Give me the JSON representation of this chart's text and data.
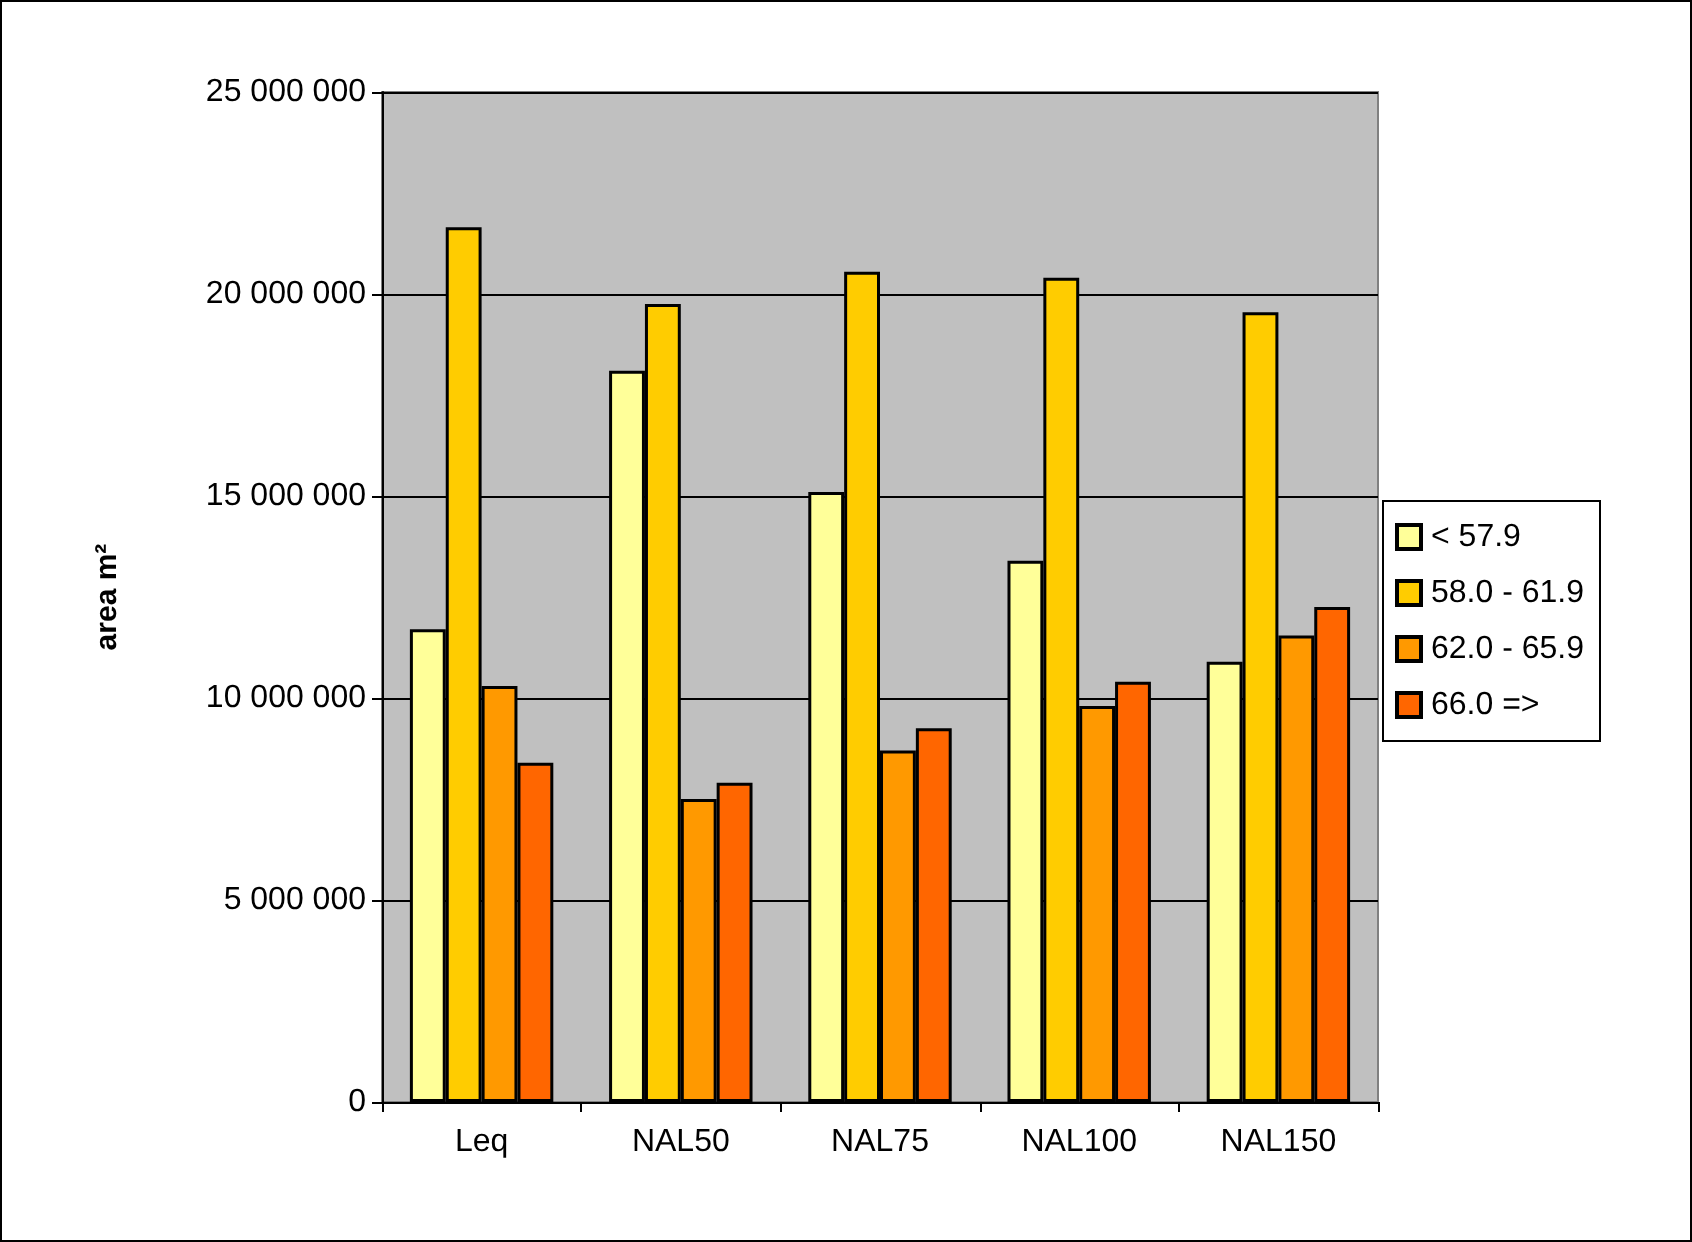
{
  "chart_data": {
    "type": "bar",
    "ylabel": "area m²",
    "categories": [
      "Leq",
      "NAL50",
      "NAL75",
      "NAL100",
      "NAL150"
    ],
    "series": [
      {
        "name": "< 57.9",
        "color": "#ffff99",
        "values": [
          11700000,
          18100000,
          15100000,
          13400000,
          10900000
        ]
      },
      {
        "name": "58.0 - 61.9",
        "color": "#ffcc00",
        "values": [
          21650000,
          19750000,
          20550000,
          20400000,
          19550000
        ]
      },
      {
        "name": "62.0 - 65.9",
        "color": "#ff9900",
        "values": [
          10300000,
          7500000,
          8700000,
          9800000,
          11550000
        ]
      },
      {
        "name": "66.0 =>",
        "color": "#ff6600",
        "values": [
          8400000,
          7900000,
          9250000,
          10400000,
          12250000
        ]
      }
    ],
    "ylim": [
      0,
      25000000
    ],
    "yticks": [
      0,
      5000000,
      10000000,
      15000000,
      20000000,
      25000000
    ],
    "grid": "y",
    "legend": "right"
  }
}
